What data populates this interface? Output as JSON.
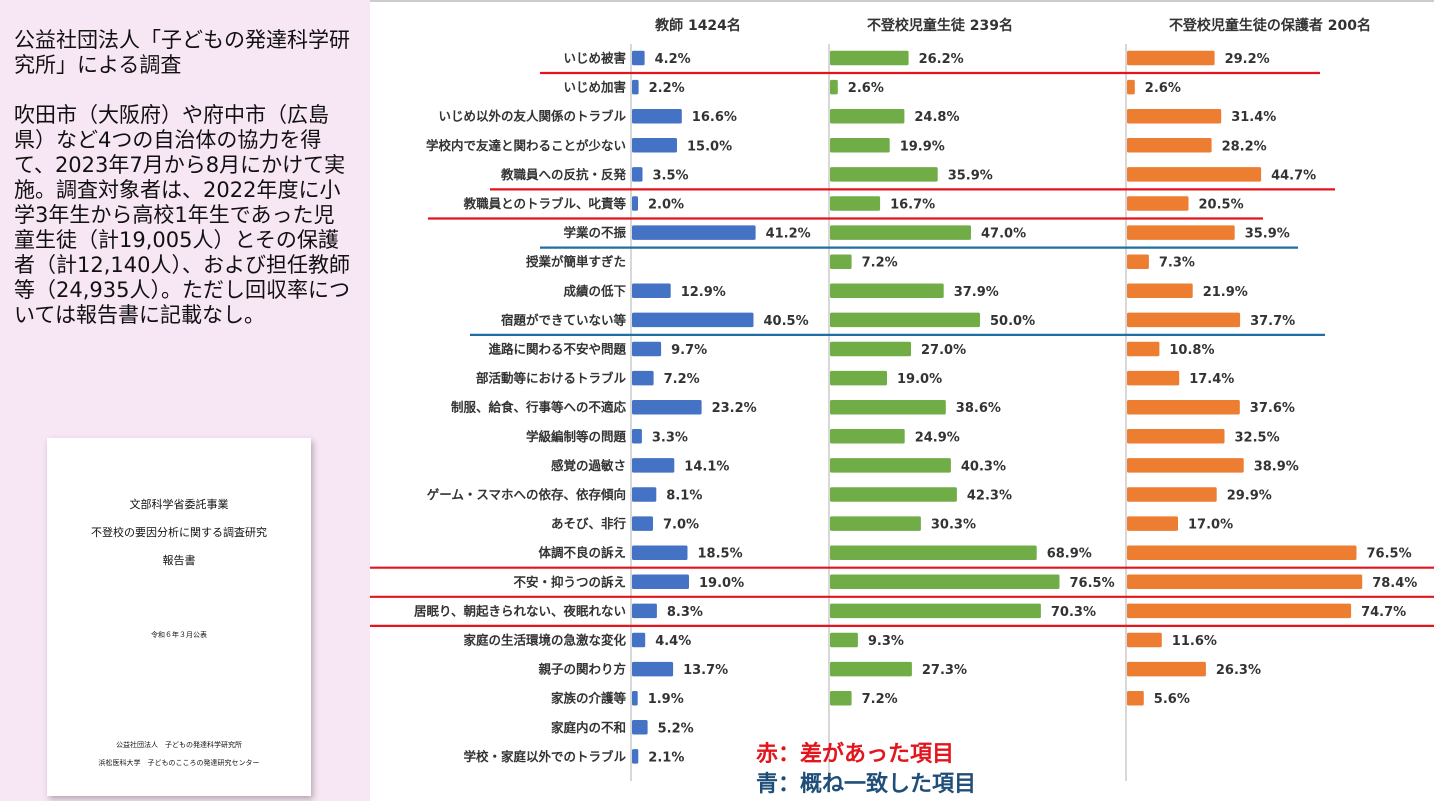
{
  "sidebar": {
    "intro": "公益社団法人「子どもの発達科学研究所」による調査\n\n吹田市（大阪府）や府中市（広島県）など4つの自治体の協力を得て、2023年7月から8月にかけて実施。調査対象者は、2022年度に小学3年生から高校1年生であった児童生徒（計19,005人）とその保護者（計12,140人）、および担任教師等（24,935人）。ただし回収率については報告書に記載なし。"
  },
  "cover": {
    "line1": "文部科学省委託事業",
    "line2": "不登校の要因分析に関する調査研究",
    "line3": "報告書",
    "line4": "令和６年３月公表",
    "line5": "公益社団法人　子どもの発達科学研究所",
    "line6": "浜松医科大学　子どものこころの発達研究センター"
  },
  "legend": {
    "red": "赤：差があった項目",
    "blue": "青：概ね一致した項目"
  },
  "chart_data": {
    "type": "bar",
    "orientation": "horizontal",
    "categories": [
      "いじめ被害",
      "いじめ加害",
      "いじめ以外の友人関係のトラブル",
      "学校内で友達と関わることが少ない",
      "教職員への反抗・反発",
      "教職員とのトラブル、叱責等",
      "学業の不振",
      "授業が簡単すぎた",
      "成績の低下",
      "宿題ができていない等",
      "進路に関わる不安や問題",
      "部活動等におけるトラブル",
      "制服、給食、行事等への不適応",
      "学級編制等の問題",
      "感覚の過敏さ",
      "ゲーム・スマホへの依存、依存傾向",
      "あそび、非行",
      "体調不良の訴え",
      "不安・抑うつの訴え",
      "居眠り、朝起きられない、夜眠れない",
      "家庭の生活環境の急激な変化",
      "親子の関わり方",
      "家族の介護等",
      "家庭内の不和",
      "学校・家庭以外でのトラブル"
    ],
    "series": [
      {
        "name": "教師 1424名",
        "color": "#4472c4",
        "values": [
          4.2,
          2.2,
          16.6,
          15.0,
          3.5,
          2.0,
          41.2,
          null,
          12.9,
          40.5,
          9.7,
          7.2,
          23.2,
          3.3,
          14.1,
          8.1,
          7.0,
          18.5,
          19.0,
          8.3,
          4.4,
          13.7,
          1.9,
          5.2,
          2.1
        ],
        "labels": [
          "4.2%",
          "2.2%",
          "16.6%",
          "15.0%",
          "3.5%",
          "2.0%",
          "41.2%",
          "",
          "12.9%",
          "40.5%",
          "9.7%",
          "7.2%",
          "23.2%",
          "3.3%",
          "14.1%",
          "8.1%",
          "7.0%",
          "18.5%",
          "19.0%",
          "8.3%",
          "4.4%",
          "13.7%",
          "1.9%",
          "5.2%",
          "2.1%"
        ]
      },
      {
        "name": "不登校児童生徒 239名",
        "color": "#70ad47",
        "values": [
          26.2,
          2.6,
          24.8,
          19.9,
          35.9,
          16.7,
          47.0,
          7.2,
          37.9,
          50.0,
          27.0,
          19.0,
          38.6,
          24.9,
          40.3,
          42.3,
          30.3,
          68.9,
          76.5,
          70.3,
          9.3,
          27.3,
          7.2,
          null,
          null
        ],
        "labels": [
          "26.2%",
          "2.6%",
          "24.8%",
          "19.9%",
          "35.9%",
          "16.7%",
          "47.0%",
          "7.2%",
          "37.9%",
          "50.0%",
          "27.0%",
          "19.0%",
          "38.6%",
          "24.9%",
          "40.3%",
          "42.3%",
          "30.3%",
          "68.9%",
          "76.5%",
          "70.3%",
          "9.3%",
          "27.3%",
          "7.2%",
          "",
          ""
        ]
      },
      {
        "name": "不登校児童生徒の保護者 200名",
        "color": "#ed7d31",
        "values": [
          29.2,
          2.6,
          31.4,
          28.2,
          44.7,
          20.5,
          35.9,
          7.3,
          21.9,
          37.7,
          10.8,
          17.4,
          37.6,
          32.5,
          38.9,
          29.9,
          17.0,
          76.5,
          78.4,
          74.7,
          11.6,
          26.3,
          5.6,
          null,
          null
        ],
        "labels": [
          "29.2%",
          "2.6%",
          "31.4%",
          "28.2%",
          "44.7%",
          "20.5%",
          "35.9%",
          "7.3%",
          "21.9%",
          "37.7%",
          "10.8%",
          "17.4%",
          "37.6%",
          "32.5%",
          "38.9%",
          "29.9%",
          "17.0%",
          "76.5%",
          "78.4%",
          "74.7%",
          "11.6%",
          "26.3%",
          "5.6%",
          "",
          ""
        ]
      }
    ],
    "highlights": {
      "red_rows": [
        0,
        4,
        5,
        17,
        18,
        19
      ],
      "blue_rows": [
        6,
        9
      ],
      "red_color": "#e3141c",
      "blue_color": "#1f6fa5"
    }
  }
}
